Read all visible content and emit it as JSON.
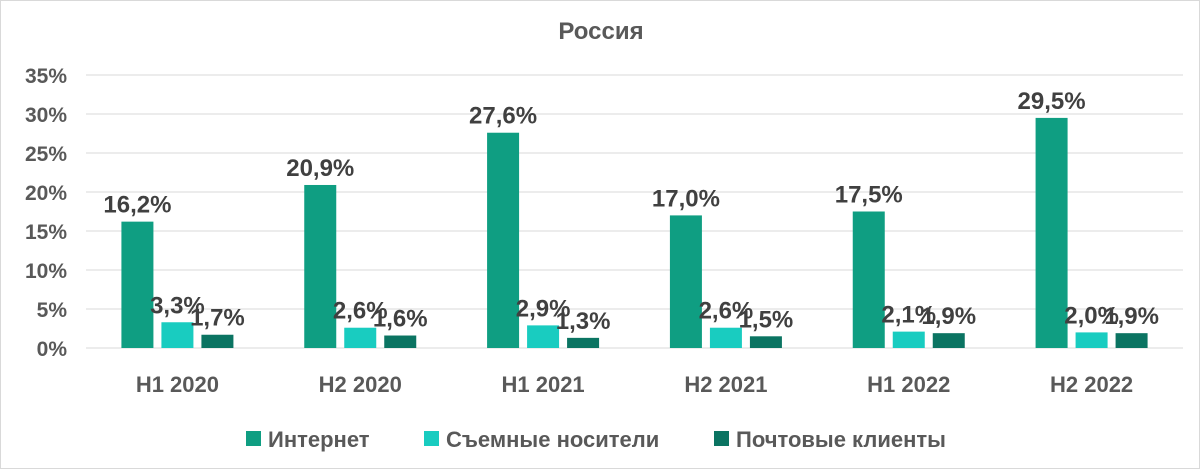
{
  "chart_data": {
    "type": "bar",
    "title": "Россия",
    "xlabel": "",
    "ylabel": "",
    "categories": [
      "H1 2020",
      "H2 2020",
      "H1 2021",
      "H2 2021",
      "H1 2022",
      "H2 2022"
    ],
    "series": [
      {
        "name": "Интернет",
        "color": "#0f9e82",
        "values": [
          16.2,
          20.9,
          27.6,
          17.0,
          17.5,
          29.5
        ],
        "labels": [
          "16,2%",
          "20,9%",
          "27,6%",
          "17,0%",
          "17,5%",
          "29,5%"
        ]
      },
      {
        "name": "Съемные носители",
        "color": "#19ccc0",
        "values": [
          3.3,
          2.6,
          2.9,
          2.6,
          2.1,
          2.0
        ],
        "labels": [
          "3,3%",
          "2,6%",
          "2,9%",
          "2,6%",
          "2,1%",
          "2,0%"
        ]
      },
      {
        "name": "Почтовые клиенты",
        "color": "#0b7462",
        "values": [
          1.7,
          1.6,
          1.3,
          1.5,
          1.9,
          1.9
        ],
        "labels": [
          "1,7%",
          "1,6%",
          "1,3%",
          "1,5%",
          "1,9%",
          "1,9%"
        ]
      }
    ],
    "ylim": [
      0,
      35
    ],
    "yticks": [
      "0%",
      "5%",
      "10%",
      "15%",
      "20%",
      "25%",
      "30%",
      "35%"
    ],
    "grid": true,
    "legend_position": "bottom"
  }
}
